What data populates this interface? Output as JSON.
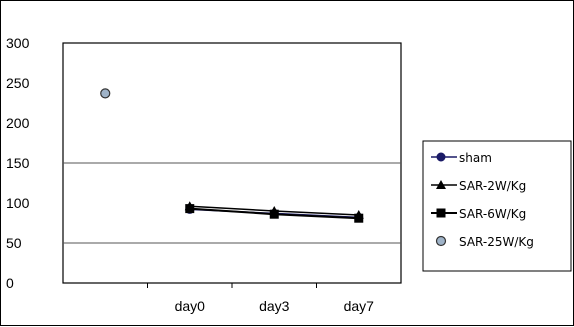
{
  "chart_data": {
    "type": "line",
    "categories": [
      "",
      "day0",
      "day3",
      "day7"
    ],
    "ylim": [
      0,
      300
    ],
    "yticks": [
      0,
      50,
      100,
      150,
      200,
      250,
      300
    ],
    "grid": "horizontal at 150 and 50",
    "legend_position": "right",
    "series": [
      {
        "name": "sham",
        "marker": "circle",
        "color": "#1a1a66",
        "values": [
          null,
          92,
          87,
          82
        ]
      },
      {
        "name": "SAR-2W/Kg",
        "marker": "triangle",
        "color": "#000000",
        "values": [
          null,
          96,
          90,
          85
        ]
      },
      {
        "name": "SAR-6W/Kg",
        "marker": "square",
        "color": "#000000",
        "values": [
          null,
          93,
          86,
          81
        ]
      },
      {
        "name": "SAR-25W/Kg",
        "marker": "circle-light",
        "color": "#9fb3c8",
        "values": [
          237,
          null,
          null,
          null
        ]
      }
    ]
  }
}
